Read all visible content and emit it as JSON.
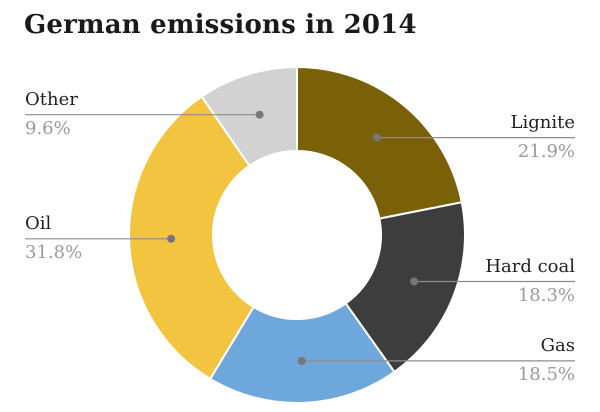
{
  "title": "German emissions in 2014",
  "style": {
    "background": "#ffffff",
    "title_color": "#1a1a1a",
    "label_color": "#1f1f1f",
    "percent_color": "#9a9a9a",
    "callout_line_color": "#8d8d8d",
    "callout_dot_color": "#767676",
    "slice_border_color": "#ffffff"
  },
  "chart_data": {
    "type": "pie",
    "subtype": "donut",
    "title": "German emissions in 2014",
    "unit": "%",
    "direction": "clockwise",
    "start_angle_deg": 0,
    "inner_radius_ratio": 0.5,
    "legend": "callout-labels",
    "slices": [
      {
        "label": "Lignite",
        "value": 21.9,
        "display": "21.9%",
        "color": "#7a6108",
        "callout_side": "right"
      },
      {
        "label": "Hard coal",
        "value": 18.3,
        "display": "18.3%",
        "color": "#3d3d3d",
        "callout_side": "right"
      },
      {
        "label": "Gas",
        "value": 18.5,
        "display": "18.5%",
        "color": "#6ea7db",
        "callout_side": "right"
      },
      {
        "label": "Oil",
        "value": 31.8,
        "display": "31.8%",
        "color": "#f2c440",
        "callout_side": "left"
      },
      {
        "label": "Other",
        "value": 9.6,
        "display": "9.6%",
        "color": "#d2d2d2",
        "callout_side": "left"
      }
    ]
  }
}
